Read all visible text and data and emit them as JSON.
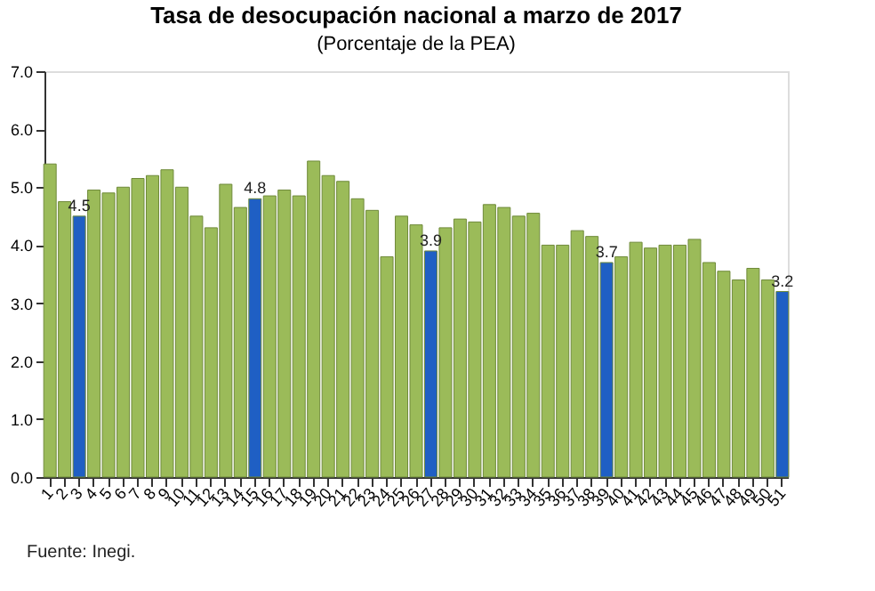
{
  "chart_data": {
    "type": "bar",
    "title": "Tasa de desocupación nacional a marzo de 2017",
    "subtitle": "(Porcentaje de la PEA)",
    "categories": [
      "1",
      "2",
      "3",
      "4",
      "5",
      "6",
      "7",
      "8",
      "9",
      "10",
      "11",
      "12",
      "13",
      "14",
      "15",
      "16",
      "17",
      "18",
      "19",
      "20",
      "21",
      "22",
      "23",
      "24",
      "25",
      "26",
      "27",
      "28",
      "29",
      "30",
      "31",
      "32",
      "33",
      "34",
      "35",
      "36",
      "37",
      "38",
      "39",
      "40",
      "41",
      "42",
      "43",
      "44",
      "45",
      "46",
      "47",
      "48",
      "49",
      "50",
      "51"
    ],
    "values": [
      5.4,
      4.75,
      4.5,
      4.95,
      4.9,
      5.0,
      5.15,
      5.2,
      5.3,
      5.0,
      4.5,
      4.3,
      5.05,
      4.65,
      4.8,
      4.85,
      4.95,
      4.85,
      5.45,
      5.2,
      5.1,
      4.8,
      4.6,
      3.8,
      4.5,
      4.35,
      3.9,
      4.3,
      4.45,
      4.4,
      4.7,
      4.65,
      4.5,
      4.55,
      4.0,
      4.0,
      4.25,
      4.15,
      3.7,
      3.8,
      4.05,
      3.95,
      4.0,
      4.0,
      4.1,
      3.7,
      3.55,
      3.4,
      3.6,
      3.4,
      3.2
    ],
    "colors": [
      "#9bbb59",
      "#9bbb59",
      "#1f5fc4",
      "#9bbb59",
      "#9bbb59",
      "#9bbb59",
      "#9bbb59",
      "#9bbb59",
      "#9bbb59",
      "#9bbb59",
      "#9bbb59",
      "#9bbb59",
      "#9bbb59",
      "#9bbb59",
      "#1f5fc4",
      "#9bbb59",
      "#9bbb59",
      "#9bbb59",
      "#9bbb59",
      "#9bbb59",
      "#9bbb59",
      "#9bbb59",
      "#9bbb59",
      "#9bbb59",
      "#9bbb59",
      "#9bbb59",
      "#1f5fc4",
      "#9bbb59",
      "#9bbb59",
      "#9bbb59",
      "#9bbb59",
      "#9bbb59",
      "#9bbb59",
      "#9bbb59",
      "#9bbb59",
      "#9bbb59",
      "#9bbb59",
      "#9bbb59",
      "#1f5fc4",
      "#9bbb59",
      "#9bbb59",
      "#9bbb59",
      "#9bbb59",
      "#9bbb59",
      "#9bbb59",
      "#9bbb59",
      "#9bbb59",
      "#9bbb59",
      "#9bbb59",
      "#9bbb59",
      "#1f5fc4"
    ],
    "value_labels": [
      null,
      null,
      "4.5",
      null,
      null,
      null,
      null,
      null,
      null,
      null,
      null,
      null,
      null,
      null,
      "4.8",
      null,
      null,
      null,
      null,
      null,
      null,
      null,
      null,
      null,
      null,
      null,
      "3.9",
      null,
      null,
      null,
      null,
      null,
      null,
      null,
      null,
      null,
      null,
      null,
      "3.7",
      null,
      null,
      null,
      null,
      null,
      null,
      null,
      null,
      null,
      null,
      null,
      "3.2"
    ],
    "ylim": [
      0,
      7
    ],
    "yticks": [
      {
        "value": 0,
        "label": "0.0"
      },
      {
        "value": 1,
        "label": "1.0"
      },
      {
        "value": 2,
        "label": "2.0"
      },
      {
        "value": 3,
        "label": "3.0"
      },
      {
        "value": 4,
        "label": "4.0"
      },
      {
        "value": 5,
        "label": "5.0"
      },
      {
        "value": 6,
        "label": "6.0"
      },
      {
        "value": 7,
        "label": "7.0"
      }
    ],
    "grid": false,
    "annotations": [
      "Fuente: Inegi."
    ]
  }
}
